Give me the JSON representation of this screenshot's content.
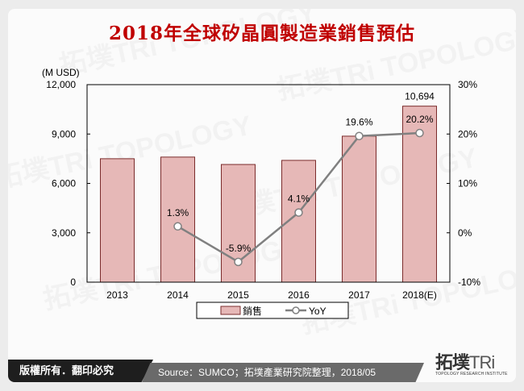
{
  "title": "2018年全球矽晶圓製造業銷售預估",
  "chart_data": {
    "type": "bar+line",
    "title": "2018年全球矽晶圓製造業銷售預估",
    "categories": [
      "2013",
      "2014",
      "2015",
      "2016",
      "2017",
      "2018(E)"
    ],
    "series": [
      {
        "name": "銷售",
        "type": "bar",
        "axis": "left",
        "values": [
          7500,
          7600,
          7150,
          7400,
          8870,
          10694
        ],
        "color": "#e6b8b7",
        "edge": "#7b2c2c"
      },
      {
        "name": "YoY",
        "type": "line",
        "axis": "right",
        "values": [
          null,
          1.3,
          -5.9,
          4.1,
          19.6,
          20.2
        ],
        "color": "#808080"
      }
    ],
    "y_left": {
      "label": "(M USD)",
      "ticks": [
        "0",
        "3,000",
        "6,000",
        "9,000",
        "12,000"
      ],
      "ylim": [
        0,
        12000
      ]
    },
    "y_right": {
      "ticks": [
        "-10%",
        "0%",
        "10%",
        "20%",
        "30%"
      ],
      "ylim": [
        -10,
        30
      ]
    },
    "data_labels": {
      "bar_2018": "10,694",
      "yoy": [
        "",
        "1.3%",
        "-5.9%",
        "4.1%",
        "19.6%",
        "20.2%"
      ]
    },
    "legend": {
      "position": "bottom",
      "items": [
        "銷售",
        "YoY"
      ]
    },
    "grid": false
  },
  "footer": {
    "copyright": "版權所有．翻印必究",
    "source": "Source：SUMCO；拓墣產業研究院整理，2018/05"
  },
  "logo": {
    "main": "拓墣",
    "tri": "TRi",
    "sub": "TOPOLOGY RESEARCH INSTITUTE"
  }
}
